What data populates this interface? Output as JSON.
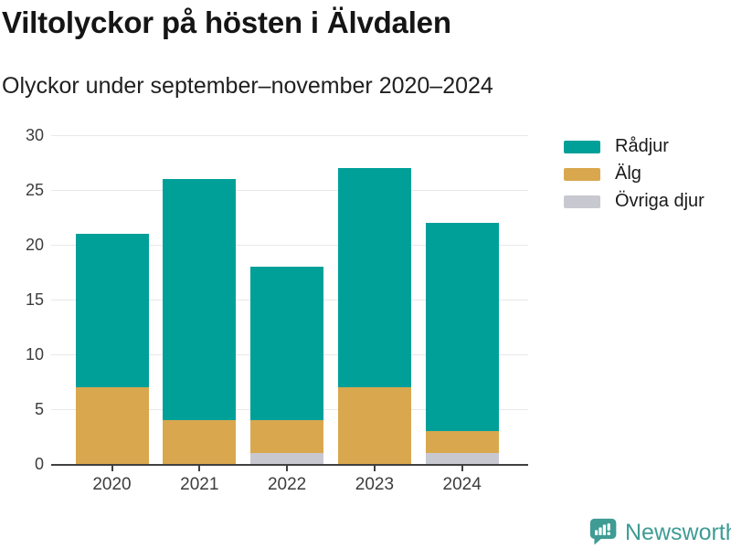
{
  "header": {
    "title": "Viltolyckor på hösten i Älvdalen",
    "subtitle": "Olyckor under september–november 2020–2024"
  },
  "footer": {
    "brand": "Newsworthy"
  },
  "colors": {
    "radjur": "#00a099",
    "alg": "#d9a84e",
    "ovriga": "#c8c8d1",
    "axis": "#404040",
    "brand_teal": "#3e9c94"
  },
  "chart_data": {
    "type": "bar",
    "stacked": true,
    "title": "Viltolyckor på hösten i Älvdalen",
    "subtitle": "Olyckor under september–november 2020–2024",
    "categories": [
      "2020",
      "2021",
      "2022",
      "2023",
      "2024"
    ],
    "series": [
      {
        "name": "Rådjur",
        "color": "#00a099",
        "values": [
          14,
          22,
          14,
          20,
          19
        ]
      },
      {
        "name": "Älg",
        "color": "#d9a84e",
        "values": [
          7,
          4,
          3,
          7,
          2
        ]
      },
      {
        "name": "Övriga djur",
        "color": "#c8c8d1",
        "values": [
          0,
          0,
          1,
          0,
          1
        ]
      }
    ],
    "stack_order_bottom_to_top": [
      "Övriga djur",
      "Älg",
      "Rådjur"
    ],
    "totals": [
      21,
      26,
      18,
      27,
      22
    ],
    "xlabel": "",
    "ylabel": "",
    "ylim": [
      0,
      30
    ],
    "yticks": [
      0,
      5,
      10,
      15,
      20,
      25,
      30
    ],
    "grid": "horizontal",
    "legend_position": "right"
  }
}
